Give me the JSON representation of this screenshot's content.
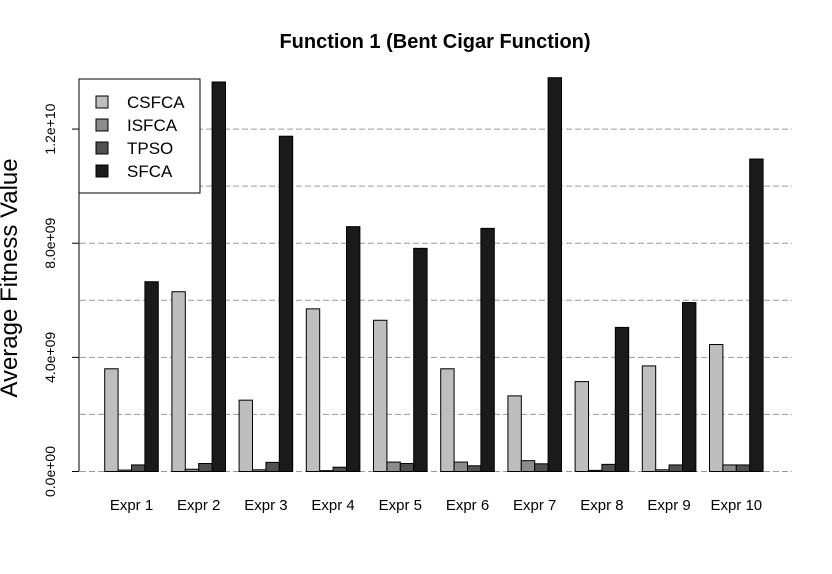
{
  "chart_data": {
    "type": "bar",
    "title": "Function 1 (Bent Cigar Function)",
    "xlabel": "",
    "ylabel": "Average Fitness Value",
    "ylim": [
      0,
      14000000000
    ],
    "yticks": [
      0,
      4000000000,
      8000000000,
      12000000000
    ],
    "ytick_labels": [
      "0.0e+00",
      "4.0e+09",
      "8.0e+09",
      "1.2e+10"
    ],
    "gridlines": [
      0,
      2000000000,
      4000000000,
      6000000000,
      8000000000,
      10000000000,
      12000000000
    ],
    "grid": true,
    "legend_position": "top-left",
    "categories": [
      "Expr 1",
      "Expr 2",
      "Expr 3",
      "Expr 4",
      "Expr 5",
      "Expr 6",
      "Expr 7",
      "Expr 8",
      "Expr 9",
      "Expr 10"
    ],
    "series": [
      {
        "name": "CSFCA",
        "color": "#bebebe",
        "values": [
          3600000000,
          6300000000,
          2500000000,
          5700000000,
          5300000000,
          3600000000,
          2650000000,
          3150000000,
          3700000000,
          4450000000
        ]
      },
      {
        "name": "ISFCA",
        "color": "#8c8c8c",
        "values": [
          50000000,
          80000000,
          60000000,
          30000000,
          330000000,
          330000000,
          380000000,
          40000000,
          60000000,
          230000000
        ]
      },
      {
        "name": "TPSO",
        "color": "#505050",
        "values": [
          230000000,
          280000000,
          320000000,
          150000000,
          280000000,
          200000000,
          270000000,
          250000000,
          230000000,
          230000000
        ]
      },
      {
        "name": "SFCA",
        "color": "#1a1a1a",
        "values": [
          6650000000,
          13650000000,
          11750000000,
          8580000000,
          7820000000,
          8520000000,
          13800000000,
          5050000000,
          5920000000,
          10950000000
        ]
      }
    ]
  }
}
